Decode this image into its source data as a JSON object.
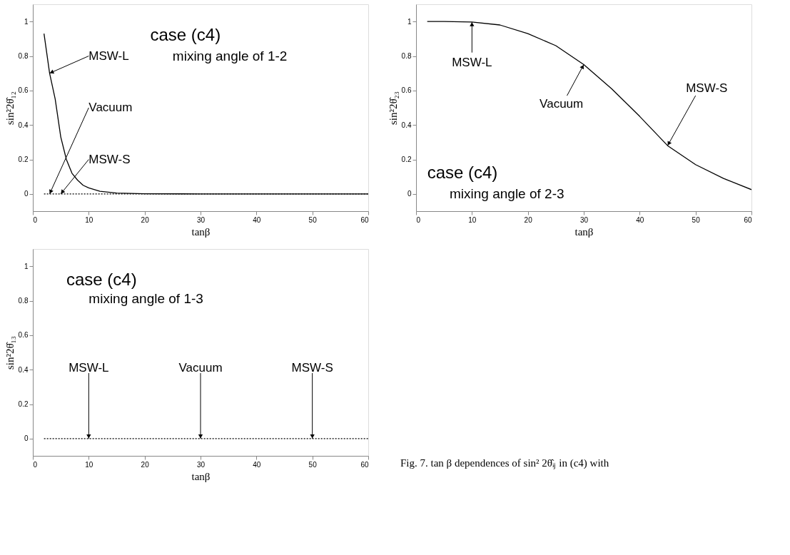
{
  "chart_data": [
    {
      "type": "line",
      "title": "case (c4)",
      "subtitle": "mixing angle of 1-2",
      "xlabel": "tanβ",
      "ylabel": "sin²2θ̂₁₂",
      "xlim": [
        0,
        60
      ],
      "xticks": [
        0,
        10,
        20,
        30,
        40,
        50,
        60
      ],
      "ylim": [
        -0.1,
        1.1
      ],
      "yticks": [
        0,
        0.2,
        0.4,
        0.6,
        0.8,
        1
      ],
      "grid": false,
      "marker": "none",
      "series": [
        {
          "color": "#000000",
          "line_style": "solid",
          "x": [
            2,
            3,
            4,
            5,
            6,
            7,
            8,
            9,
            10,
            12,
            15,
            20,
            30,
            60
          ],
          "values": [
            0.93,
            0.7,
            0.55,
            0.33,
            0.2,
            0.12,
            0.08,
            0.05,
            0.035,
            0.015,
            0.005,
            0.001,
            0,
            0
          ]
        },
        {
          "color": "#000000",
          "line_style": "dotted",
          "x": [
            2,
            60
          ],
          "values": [
            0,
            0
          ]
        }
      ],
      "annotations": [
        {
          "text": "MSW-L",
          "x": 3,
          "y": 0.7
        },
        {
          "text": "Vacuum",
          "x": 3,
          "y": 0
        },
        {
          "text": "MSW-S",
          "x": 5,
          "y": 0
        }
      ]
    },
    {
      "type": "line",
      "title": "case (c4)",
      "subtitle": "mixing angle of 2-3",
      "xlabel": "tanβ",
      "ylabel": "sin²2θ̂₂₃",
      "xlim": [
        0,
        60
      ],
      "xticks": [
        0,
        10,
        20,
        30,
        40,
        50,
        60
      ],
      "ylim": [
        -0.1,
        1.1
      ],
      "yticks": [
        0,
        0.2,
        0.4,
        0.6,
        0.8,
        1
      ],
      "grid": false,
      "marker": "none",
      "series": [
        {
          "color": "#000000",
          "line_style": "solid",
          "x": [
            2,
            5,
            10,
            15,
            20,
            25,
            30,
            35,
            40,
            45,
            50,
            55,
            60
          ],
          "values": [
            1,
            1,
            0.997,
            0.98,
            0.93,
            0.86,
            0.75,
            0.61,
            0.45,
            0.28,
            0.17,
            0.09,
            0.025
          ]
        }
      ],
      "annotations": [
        {
          "text": "MSW-L",
          "x": 10,
          "y": 0.997
        },
        {
          "text": "Vacuum",
          "x": 30,
          "y": 0.75
        },
        {
          "text": "MSW-S",
          "x": 45,
          "y": 0.28
        }
      ]
    },
    {
      "type": "line",
      "title": "case (c4)",
      "subtitle": "mixing angle of 1-3",
      "xlabel": "tanβ",
      "ylabel": "sin²2θ̂₁₃",
      "xlim": [
        0,
        60
      ],
      "xticks": [
        0,
        10,
        20,
        30,
        40,
        50,
        60
      ],
      "ylim": [
        -0.1,
        1.1
      ],
      "yticks": [
        0,
        0.2,
        0.4,
        0.6,
        0.8,
        1
      ],
      "grid": false,
      "marker": "none",
      "series": [
        {
          "color": "#000000",
          "line_style": "dotted",
          "x": [
            2,
            60
          ],
          "values": [
            0,
            0
          ]
        }
      ],
      "annotations": [
        {
          "text": "MSW-L",
          "x": 10,
          "y": 0
        },
        {
          "text": "Vacuum",
          "x": 30,
          "y": 0
        },
        {
          "text": "MSW-S",
          "x": 50,
          "y": 0
        },
        "Fig. 7. tan β dependences of sin² 2θ̂ᵢⱼ in (c4) with"
      ]
    }
  ]
}
